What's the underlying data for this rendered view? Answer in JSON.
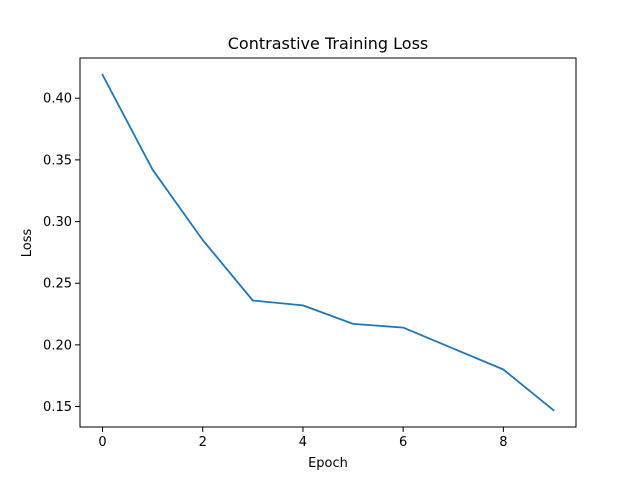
{
  "chart_data": {
    "type": "line",
    "title": "Contrastive Training Loss",
    "xlabel": "Epoch",
    "ylabel": "Loss",
    "x": [
      0,
      1,
      2,
      3,
      4,
      5,
      6,
      7,
      8,
      9
    ],
    "series": [
      {
        "values": [
          0.419,
          0.342,
          0.285,
          0.236,
          0.232,
          0.217,
          0.214,
          0.197,
          0.18,
          0.147
        ],
        "color": "#1f77b4"
      }
    ],
    "xlim": [
      -0.45,
      9.45
    ],
    "ylim": [
      0.1334,
      0.4326
    ],
    "xticks": [
      0,
      2,
      4,
      6,
      8
    ],
    "xtick_labels": [
      "0",
      "2",
      "4",
      "6",
      "8"
    ],
    "yticks": [
      0.15,
      0.2,
      0.25,
      0.3,
      0.35,
      0.4
    ],
    "ytick_labels": [
      "0.15",
      "0.20",
      "0.25",
      "0.30",
      "0.35",
      "0.40"
    ],
    "grid": false,
    "legend": false
  }
}
